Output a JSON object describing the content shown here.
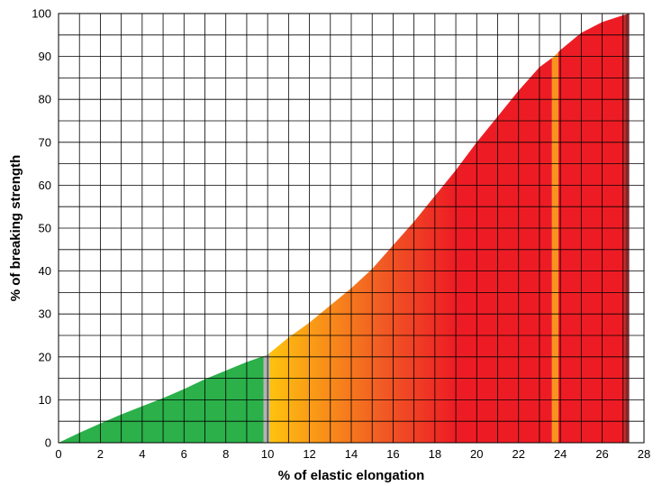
{
  "chart_data": {
    "type": "area",
    "title": "",
    "xlabel": "% of elastic elongation",
    "ylabel": "% of breaking strength",
    "xlim": [
      0,
      28
    ],
    "ylim": [
      0,
      100
    ],
    "x_ticks": [
      0,
      2,
      4,
      6,
      8,
      10,
      12,
      14,
      16,
      18,
      20,
      22,
      24,
      26,
      28
    ],
    "x_tick_labels": [
      "0",
      "2",
      "4",
      "6",
      "8",
      "10",
      "12",
      "14",
      "16",
      "18",
      "20",
      "22",
      "24",
      "26",
      "28"
    ],
    "y_ticks": [
      0,
      10,
      20,
      30,
      40,
      50,
      60,
      70,
      80,
      90,
      100
    ],
    "y_tick_labels": [
      "0",
      "10",
      "20",
      "30",
      "40",
      "50",
      "60",
      "70",
      "80",
      "90",
      "100"
    ],
    "grid": true,
    "x_minor_step": 1,
    "y_minor_step": 5,
    "series": [
      {
        "x": [
          0,
          1,
          2,
          3,
          4,
          5,
          6,
          7,
          8,
          9,
          10,
          11,
          12,
          13,
          14,
          15,
          16,
          17,
          18,
          19,
          20,
          21,
          22,
          23,
          23.7,
          24,
          25,
          26,
          27,
          27.3
        ],
        "y": [
          0,
          2.3,
          4.5,
          6.6,
          8.5,
          10.4,
          12.5,
          14.8,
          16.8,
          18.8,
          20.5,
          24.5,
          28,
          32,
          36,
          40.5,
          46,
          51.5,
          57.5,
          63.5,
          70,
          76,
          82,
          87.5,
          90,
          91.5,
          95.5,
          98,
          99.6,
          100
        ]
      }
    ],
    "regions": [
      {
        "x_start": 0,
        "x_end": 9.8,
        "color": "#2bb04a"
      },
      {
        "x_start": 9.8,
        "x_end": 10.1,
        "color": "#b3b3b3"
      },
      {
        "x_start": 10.1,
        "x_end": 23.6,
        "gradient": [
          "#ffc20e",
          "#f15a24",
          "#ed1c24"
        ],
        "gradient_stops_x": [
          10.1,
          15.5,
          19
        ]
      },
      {
        "x_start": 23.6,
        "x_end": 23.9,
        "color": "#f7941d"
      },
      {
        "x_start": 23.9,
        "x_end": 27.1,
        "color": "#ed1c24"
      },
      {
        "x_start": 27.1,
        "x_end": 27.3,
        "color": "#7f2a2a"
      }
    ]
  }
}
